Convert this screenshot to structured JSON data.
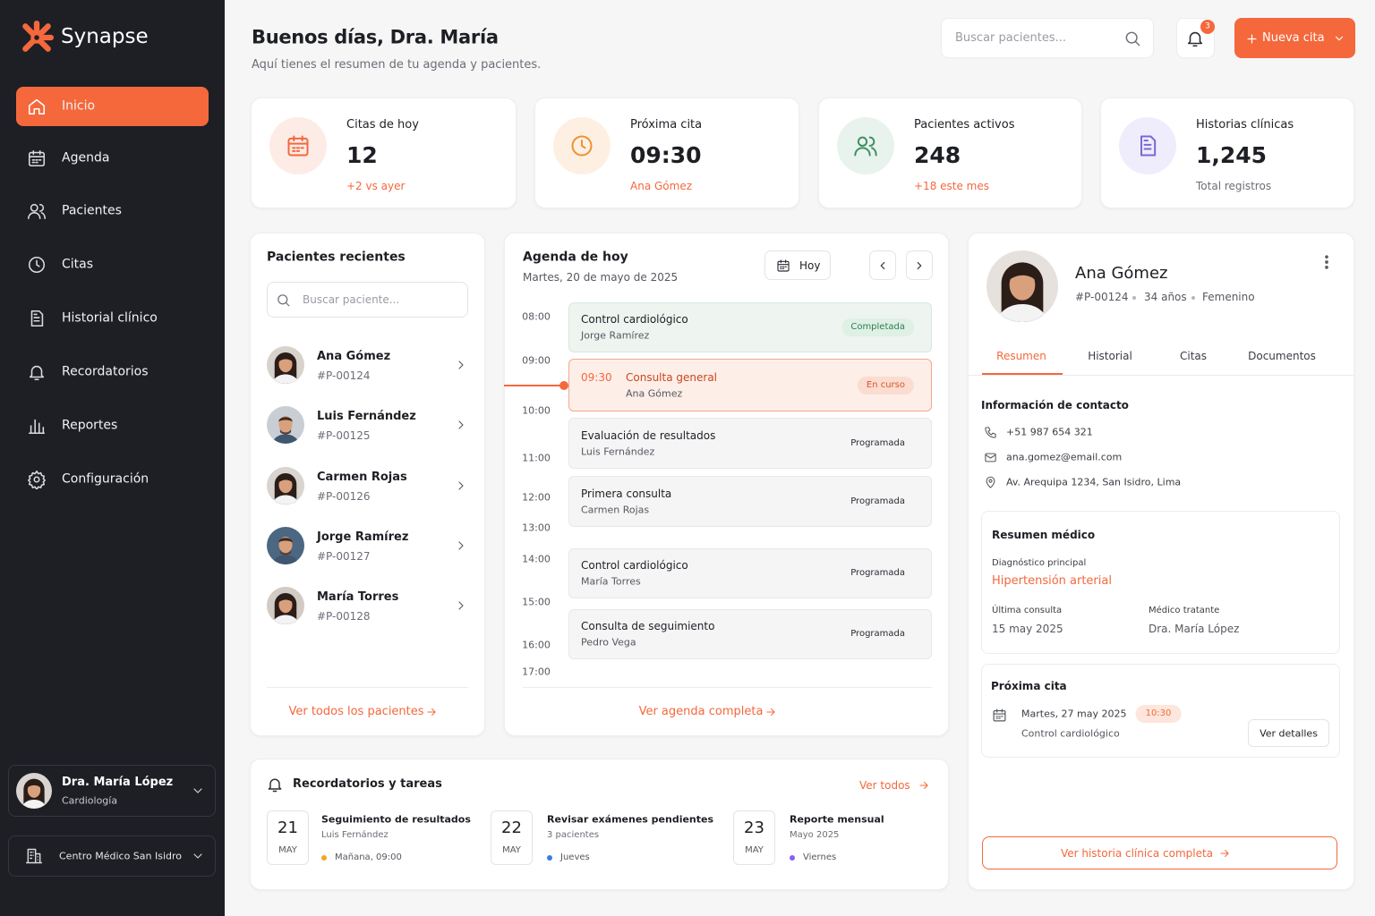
{
  "sidebar": {
    "brand": "Synapse",
    "nav": [
      "Inicio",
      "Agenda",
      "Pacientes",
      "Citas",
      "Historial clínico",
      "Recordatorios",
      "Reportes",
      "Configuración"
    ],
    "user": {
      "name": "Dra. María López",
      "role": "Cardiología"
    },
    "clinic": "Centro Médico San Isidro"
  },
  "header": {
    "title": "Buenos días, Dra. María",
    "subtitle": "Aquí tienes el resumen de tu agenda y pacientes.",
    "search_placeholder": "Buscar pacientes...",
    "notifications": "3",
    "new_button": "Nueva cita"
  },
  "stats": [
    {
      "label": "Citas de hoy",
      "value": "12",
      "note": "+2 vs ayer"
    },
    {
      "label": "Próxima cita",
      "value": "09:30",
      "note": "Ana Gómez"
    },
    {
      "label": "Pacientes activos",
      "value": "248",
      "note": "+18 este mes"
    },
    {
      "label": "Historias clínicas",
      "value": "1,245",
      "note": "Total registros"
    }
  ],
  "recent": {
    "title": "Pacientes recientes",
    "search_placeholder": "Buscar paciente...",
    "patients": [
      {
        "name": "Ana Gómez",
        "id": "#P-00124"
      },
      {
        "name": "Luis Fernández",
        "id": "#P-00125"
      },
      {
        "name": "Carmen Rojas",
        "id": "#P-00126"
      },
      {
        "name": "Jorge Ramírez",
        "id": "#P-00127"
      },
      {
        "name": "María Torres",
        "id": "#P-00128"
      }
    ],
    "link": "Ver todos los pacientes"
  },
  "agenda": {
    "title": "Agenda de hoy",
    "date": "Martes, 20 de mayo de 2025",
    "today_button": "Hoy",
    "hours": [
      "08:00",
      "09:00",
      "10:00",
      "11:00",
      "12:00",
      "13:00",
      "14:00",
      "15:00",
      "16:00",
      "17:00"
    ],
    "appointments": [
      {
        "title": "Control cardiológico",
        "patient": "Jorge Ramírez",
        "status": "Completada"
      },
      {
        "time": "09:30",
        "title": "Consulta general",
        "patient": "Ana Gómez",
        "status": "En curso"
      },
      {
        "title": "Evaluación de resultados",
        "patient": "Luis Fernández",
        "status": "Programada"
      },
      {
        "title": "Primera consulta",
        "patient": "Carmen Rojas",
        "status": "Programada"
      },
      {
        "title": "Control cardiológico",
        "patient": "María Torres",
        "status": "Programada"
      },
      {
        "title": "Consulta de seguimiento",
        "patient": "Pedro Vega",
        "status": "Programada"
      }
    ],
    "link": "Ver agenda completa"
  },
  "reminders": {
    "title": "Recordatorios y tareas",
    "link": "Ver todos",
    "items": [
      {
        "day": "21",
        "month": "MAY",
        "title": "Seguimiento de resultados",
        "detail": "Luis Fernández",
        "when": "Mañana, 09:00"
      },
      {
        "day": "22",
        "month": "MAY",
        "title": "Revisar exámenes pendientes",
        "detail": "3 pacientes",
        "when": "Jueves"
      },
      {
        "day": "23",
        "month": "MAY",
        "title": "Reporte mensual",
        "detail": "Mayo 2025",
        "when": "Viernes"
      }
    ]
  },
  "profile": {
    "name": "Ana Gómez",
    "id": "#P-00124",
    "age": "34 años",
    "sex": "Femenino",
    "tabs": [
      "Resumen",
      "Historial",
      "Citas",
      "Documentos"
    ],
    "contact": {
      "title": "Información de contacto",
      "phone": "+51 987 654 321",
      "email": "ana.gomez@email.com",
      "address": "Av. Arequipa 1234, San Isidro, Lima"
    },
    "medical": {
      "title": "Resumen médico",
      "diagnosis_label": "Diagnóstico principal",
      "diagnosis": "Hipertensión arterial",
      "last_label": "Última consulta",
      "last": "15 may 2025",
      "doctor_label": "Médico tratante",
      "doctor": "Dra. María López"
    },
    "next": {
      "title": "Próxima cita",
      "date": "Martes, 27 may 2025",
      "time": "10:30",
      "type": "Control cardiológico",
      "button": "Ver detalles"
    },
    "link": "Ver historia clínica completa"
  }
}
